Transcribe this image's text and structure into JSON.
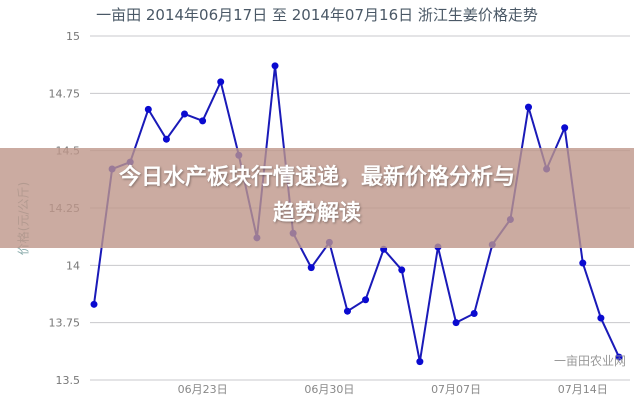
{
  "chart_data": {
    "type": "line",
    "title": "一亩田 2014年06月17日 至 2014年07月16日 浙江生姜价格走势",
    "ylabel": "价格(元/公斤)",
    "xlabel": "",
    "ylim": [
      13.5,
      15
    ],
    "yticks": [
      "13.5",
      "13.75",
      "14",
      "14.25",
      "14.5",
      "14.75",
      "15"
    ],
    "xtick_labels": [
      {
        "index": 6,
        "label": "06月23日"
      },
      {
        "index": 13,
        "label": "06月30日"
      },
      {
        "index": 20,
        "label": "07月07日"
      },
      {
        "index": 27,
        "label": "07月14日"
      }
    ],
    "grid": true,
    "line_color": "#1a1ab8",
    "x": [
      "06-17",
      "06-18",
      "06-19",
      "06-20",
      "06-21",
      "06-22",
      "06-23",
      "06-24",
      "06-25",
      "06-26",
      "06-27",
      "06-28",
      "06-29",
      "06-30",
      "07-01",
      "07-02",
      "07-03",
      "07-04",
      "07-05",
      "07-06",
      "07-07",
      "07-08",
      "07-09",
      "07-10",
      "07-11",
      "07-12",
      "07-13",
      "07-14",
      "07-15",
      "07-16"
    ],
    "values": [
      13.83,
      14.42,
      14.45,
      14.68,
      14.55,
      14.66,
      14.63,
      14.8,
      14.48,
      14.12,
      14.87,
      14.14,
      13.99,
      14.1,
      13.8,
      13.85,
      14.07,
      13.98,
      13.58,
      14.08,
      13.75,
      13.79,
      14.09,
      14.2,
      14.69,
      14.42,
      14.6,
      14.01,
      13.77,
      13.6
    ]
  },
  "watermark": "一亩田农业网",
  "banner": {
    "line1": "今日水产板块行情速递，最新价格分析与",
    "line2": "趋势解读",
    "color": "#be968a"
  }
}
